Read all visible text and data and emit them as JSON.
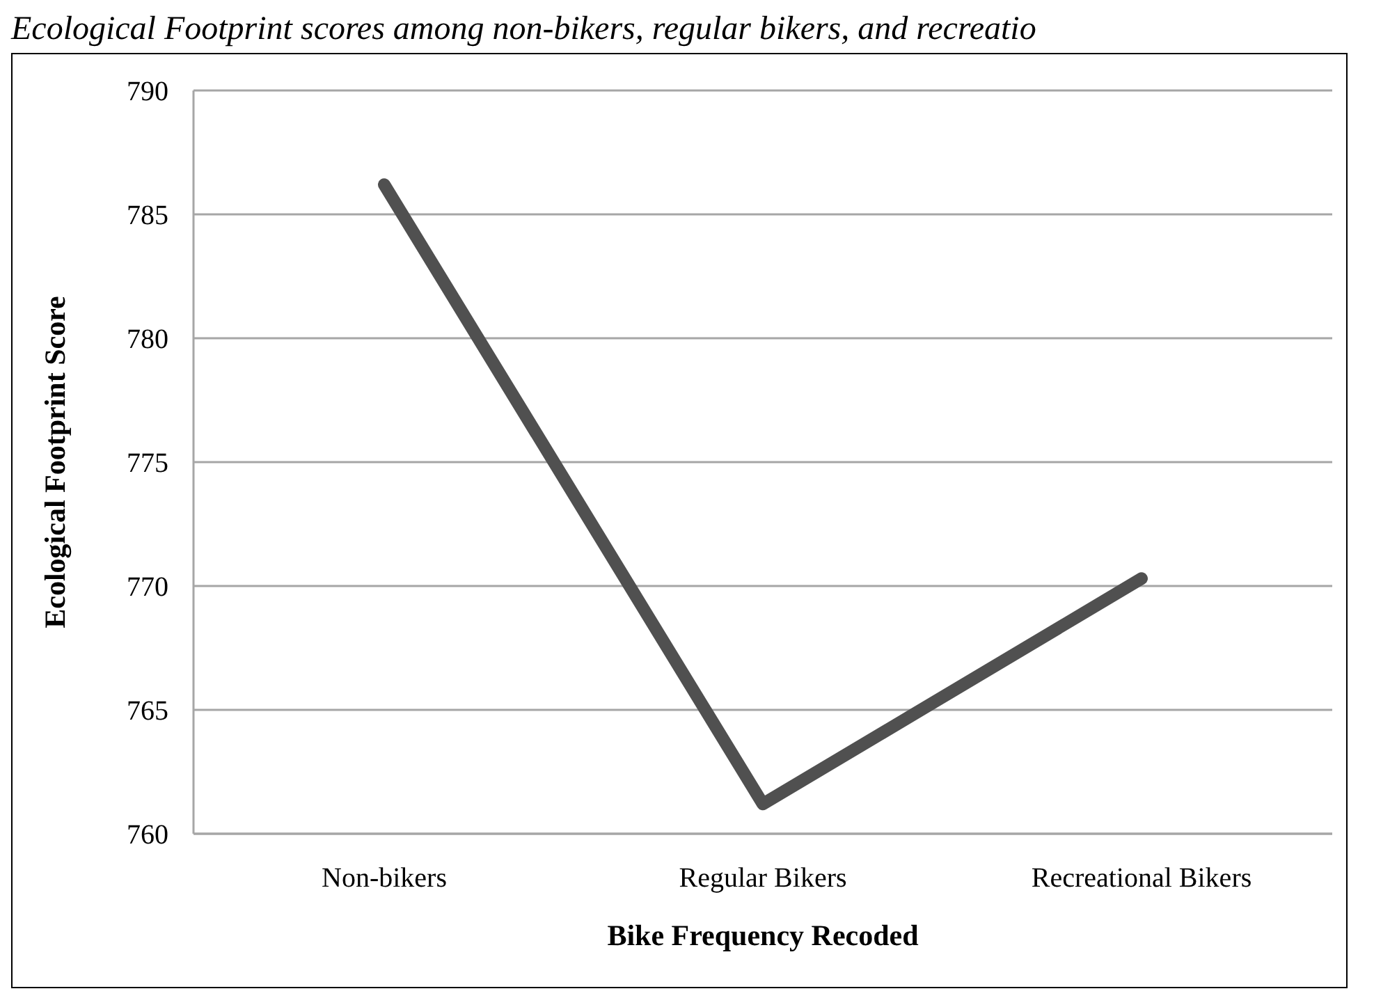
{
  "chart_data": {
    "type": "line",
    "title": "Ecological Footprint scores among non-bikers, regular bikers, and recreatio",
    "xlabel": "Bike Frequency Recoded",
    "ylabel": "Ecological Footprint Score",
    "categories": [
      "Non-bikers",
      "Regular Bikers",
      "Recreational Bikers"
    ],
    "series": [
      {
        "color": "#505050",
        "values": [
          786.2,
          761.2,
          770.3
        ]
      }
    ],
    "ylim": [
      760,
      790
    ],
    "yticks": [
      760,
      765,
      770,
      775,
      780,
      785,
      790
    ],
    "grid": "y",
    "legend": false,
    "marker": "none",
    "line_style": "solid"
  }
}
